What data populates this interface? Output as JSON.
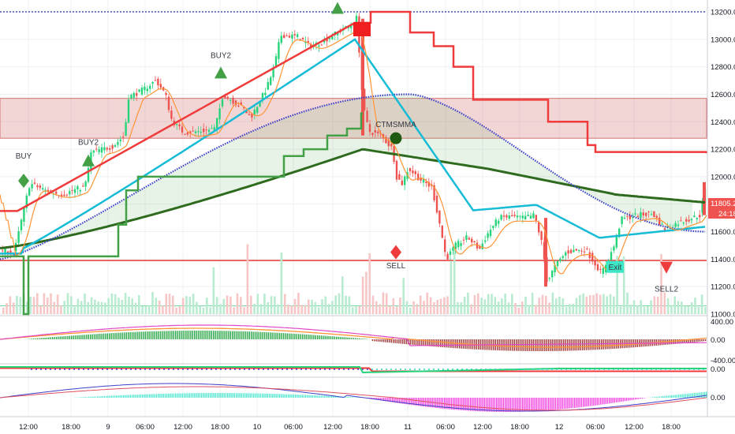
{
  "chart_data": [
    {
      "type": "line",
      "pane": "price",
      "title": "",
      "ylim": [
        11000,
        13250
      ],
      "y_ticks": [
        "13200.00",
        "13000.00",
        "12800.00",
        "12600.00",
        "12400.00",
        "12200.00",
        "12000.00",
        "11800.00",
        "11600.00",
        "11400.00",
        "11200.00",
        "11000.00"
      ],
      "y_tick_values": [
        13200,
        13000,
        12800,
        12600,
        12400,
        12200,
        12000,
        11800,
        11600,
        11400,
        11200,
        11000
      ],
      "x_ticks": [
        "12:00",
        "18:00",
        "9",
        "06:00",
        "12:00",
        "18:00",
        "10",
        "06:00",
        "12:00",
        "18:00",
        "11",
        "06:00",
        "12:00",
        "18:00",
        "12",
        "06:00",
        "12:00",
        "18:00"
      ],
      "x_tick_values": [
        36,
        90,
        137,
        184,
        232,
        279,
        326,
        372,
        422,
        469,
        517,
        565,
        612,
        659,
        709,
        755,
        804,
        851
      ],
      "price_label": "11805.25",
      "countdown_label": "24:18",
      "colors": {
        "up": "#26d47a",
        "down": "#ef5350",
        "orange": "#ff9436",
        "cyan": "#16bcd6",
        "dark_green": "#2e6b1e",
        "mid_green": "#43a047",
        "blue": "#3c40c8",
        "red_band": "#f0a4a4",
        "stop_red": "#ef3b3b"
      },
      "annotations": [
        {
          "text": "BUY",
          "x": 30,
          "y": 12150,
          "marker": "green-diamond",
          "marker_y": 11970
        },
        {
          "text": "BUY2",
          "x": 112,
          "y": 12250,
          "marker": "green-triangle-up",
          "marker_y": 12110
        },
        {
          "text": "BUY2",
          "x": 280,
          "y": 12880,
          "marker": "green-triangle-up",
          "marker_y": 12750
        },
        {
          "text": "",
          "x": 428,
          "y": 13200,
          "marker": "green-triangle-up",
          "marker_y": 13220
        },
        {
          "text": "CTMSMMA",
          "x": 502,
          "y": 12380,
          "marker": "dark-green-circle",
          "marker_y": 12280
        },
        {
          "text": "SELL",
          "x": 502,
          "y": 11350,
          "marker": "red-diamond",
          "marker_y": 11450
        },
        {
          "text": "Exit",
          "x": 780,
          "y": 11340,
          "marker": "teal-box",
          "marker_y": 11340
        },
        {
          "text": "SELL2",
          "x": 845,
          "y": 11180,
          "marker": "red-triangle-down",
          "marker_y": 11340
        }
      ],
      "resistance_lines": [
        13200,
        11390,
        11060
      ],
      "supply_zone": [
        12280,
        12570
      ]
    },
    {
      "type": "bar",
      "pane": "oscillator-1",
      "y_ticks": [
        "400.00",
        "0.00",
        "-400.00"
      ],
      "y_tick_values": [
        400,
        0,
        -400
      ]
    },
    {
      "type": "bar",
      "pane": "oscillator-2",
      "y_ticks": [
        "0.00"
      ],
      "y_tick_values": [
        0
      ]
    },
    {
      "type": "bar",
      "pane": "oscillator-3",
      "y_ticks": [
        "0.00"
      ],
      "y_tick_values": [
        0
      ]
    }
  ]
}
